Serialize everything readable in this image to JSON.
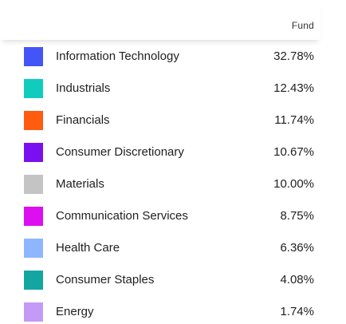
{
  "header": {
    "column_fund": "Fund"
  },
  "sectors": [
    {
      "name": "Information Technology",
      "value": "32.78%",
      "color": "#4455f8"
    },
    {
      "name": "Industrials",
      "value": "12.43%",
      "color": "#11ccbc"
    },
    {
      "name": "Financials",
      "value": "11.74%",
      "color": "#ff5c10"
    },
    {
      "name": "Consumer Discretionary",
      "value": "10.67%",
      "color": "#7a10f0"
    },
    {
      "name": "Materials",
      "value": "10.00%",
      "color": "#c4c4c4"
    },
    {
      "name": "Communication Services",
      "value": "8.75%",
      "color": "#dd0ef0"
    },
    {
      "name": "Health Care",
      "value": "6.36%",
      "color": "#8eb6ff"
    },
    {
      "name": "Consumer Staples",
      "value": "4.08%",
      "color": "#13a6a0"
    },
    {
      "name": "Energy",
      "value": "1.74%",
      "color": "#c49af6"
    }
  ]
}
